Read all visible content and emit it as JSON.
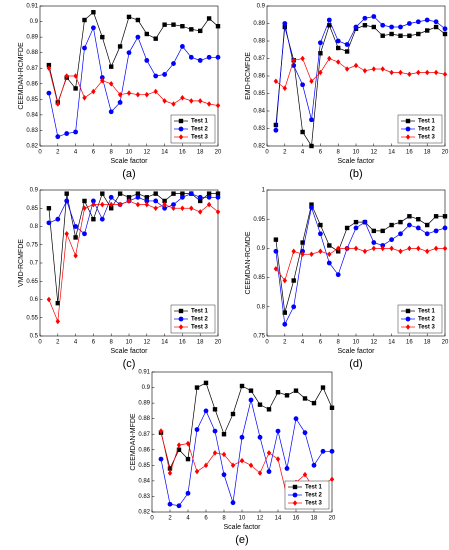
{
  "chart_data": [
    {
      "type": "line",
      "caption": "(a)",
      "xlabel": "Scale factor",
      "ylabel": "CEEMDAN-RCMFDE",
      "x": [
        1,
        2,
        3,
        4,
        5,
        6,
        7,
        8,
        9,
        10,
        11,
        12,
        13,
        14,
        15,
        16,
        17,
        18,
        19,
        20
      ],
      "xlim": [
        0,
        20
      ],
      "xticks": [
        0,
        2,
        4,
        6,
        8,
        10,
        12,
        14,
        16,
        18,
        20
      ],
      "ylim": [
        0.82,
        0.91
      ],
      "yticks": [
        0.82,
        0.83,
        0.84,
        0.85,
        0.86,
        0.87,
        0.88,
        0.89,
        0.9,
        0.91
      ],
      "legend": "lower right",
      "series": [
        {
          "name": "Test 1",
          "color": "#000000",
          "marker": "square",
          "values": [
            0.872,
            0.848,
            0.864,
            0.857,
            0.901,
            0.906,
            0.89,
            0.871,
            0.884,
            0.903,
            0.901,
            0.892,
            0.889,
            0.898,
            0.898,
            0.897,
            0.895,
            0.894,
            0.902,
            0.897
          ]
        },
        {
          "name": "Test 2",
          "color": "#0000ff",
          "marker": "circle",
          "values": [
            0.854,
            0.826,
            0.828,
            0.829,
            0.883,
            0.896,
            0.864,
            0.842,
            0.848,
            0.88,
            0.89,
            0.875,
            0.865,
            0.866,
            0.873,
            0.884,
            0.877,
            0.875,
            0.877,
            0.877
          ]
        },
        {
          "name": "Test 3",
          "color": "#ff0000",
          "marker": "diamond",
          "values": [
            0.87,
            0.847,
            0.865,
            0.865,
            0.851,
            0.855,
            0.862,
            0.86,
            0.853,
            0.854,
            0.853,
            0.853,
            0.855,
            0.849,
            0.847,
            0.851,
            0.849,
            0.849,
            0.847,
            0.846
          ]
        }
      ]
    },
    {
      "type": "line",
      "caption": "(b)",
      "xlabel": "Scale factor",
      "ylabel": "EMD-RCMFDE",
      "x": [
        1,
        2,
        3,
        4,
        5,
        6,
        7,
        8,
        9,
        10,
        11,
        12,
        13,
        14,
        15,
        16,
        17,
        18,
        19,
        20
      ],
      "xlim": [
        0,
        20
      ],
      "xticks": [
        0,
        2,
        4,
        6,
        8,
        10,
        12,
        14,
        16,
        18,
        20
      ],
      "ylim": [
        0.82,
        0.9
      ],
      "yticks": [
        0.82,
        0.83,
        0.84,
        0.85,
        0.86,
        0.87,
        0.88,
        0.89,
        0.9
      ],
      "legend": "lower right",
      "series": [
        {
          "name": "Test 1",
          "color": "#000000",
          "marker": "square",
          "values": [
            0.832,
            0.888,
            0.869,
            0.828,
            0.82,
            0.873,
            0.889,
            0.876,
            0.874,
            0.887,
            0.889,
            0.888,
            0.883,
            0.884,
            0.883,
            0.883,
            0.884,
            0.886,
            0.888,
            0.884
          ]
        },
        {
          "name": "Test 2",
          "color": "#0000ff",
          "marker": "circle",
          "values": [
            0.829,
            0.89,
            0.866,
            0.855,
            0.835,
            0.879,
            0.892,
            0.88,
            0.878,
            0.888,
            0.893,
            0.894,
            0.889,
            0.888,
            0.888,
            0.89,
            0.891,
            0.892,
            0.891,
            0.887
          ]
        },
        {
          "name": "Test 3",
          "color": "#ff0000",
          "marker": "diamond",
          "values": [
            0.857,
            0.853,
            0.869,
            0.87,
            0.857,
            0.862,
            0.87,
            0.868,
            0.864,
            0.866,
            0.863,
            0.864,
            0.864,
            0.862,
            0.862,
            0.861,
            0.862,
            0.862,
            0.862,
            0.861
          ]
        }
      ]
    },
    {
      "type": "line",
      "caption": "(c)",
      "xlabel": "Scale factor",
      "ylabel": "VMD-RCMFDE",
      "x": [
        1,
        2,
        3,
        4,
        5,
        6,
        7,
        8,
        9,
        10,
        11,
        12,
        13,
        14,
        15,
        16,
        17,
        18,
        19,
        20
      ],
      "xlim": [
        0,
        20
      ],
      "xticks": [
        0,
        2,
        4,
        6,
        8,
        10,
        12,
        14,
        16,
        18,
        20
      ],
      "ylim": [
        0.5,
        0.9
      ],
      "yticks": [
        0.5,
        0.55,
        0.6,
        0.65,
        0.7,
        0.75,
        0.8,
        0.85,
        0.9
      ],
      "legend": "lower right",
      "series": [
        {
          "name": "Test 1",
          "color": "#000000",
          "marker": "square",
          "values": [
            0.85,
            0.59,
            0.89,
            0.77,
            0.87,
            0.82,
            0.89,
            0.85,
            0.89,
            0.88,
            0.89,
            0.88,
            0.89,
            0.87,
            0.89,
            0.89,
            0.89,
            0.87,
            0.89,
            0.89
          ]
        },
        {
          "name": "Test 2",
          "color": "#0000ff",
          "marker": "circle",
          "values": [
            0.81,
            0.82,
            0.87,
            0.8,
            0.78,
            0.87,
            0.82,
            0.88,
            0.86,
            0.87,
            0.88,
            0.87,
            0.87,
            0.85,
            0.86,
            0.88,
            0.89,
            0.88,
            0.88,
            0.88
          ]
        },
        {
          "name": "Test 3",
          "color": "#ff0000",
          "marker": "diamond",
          "values": [
            0.6,
            0.54,
            0.78,
            0.72,
            0.85,
            0.86,
            0.86,
            0.86,
            0.86,
            0.87,
            0.86,
            0.86,
            0.85,
            0.86,
            0.85,
            0.85,
            0.85,
            0.84,
            0.86,
            0.84
          ]
        }
      ]
    },
    {
      "type": "line",
      "caption": "(d)",
      "xlabel": "Scale factor",
      "ylabel": "CEEMDAN-RCMDE",
      "x": [
        1,
        2,
        3,
        4,
        5,
        6,
        7,
        8,
        9,
        10,
        11,
        12,
        13,
        14,
        15,
        16,
        17,
        18,
        19,
        20
      ],
      "xlim": [
        0,
        20
      ],
      "xticks": [
        0,
        2,
        4,
        6,
        8,
        10,
        12,
        14,
        16,
        18,
        20
      ],
      "ylim": [
        0.75,
        1
      ],
      "yticks": [
        0.75,
        0.8,
        0.85,
        0.9,
        0.95,
        1
      ],
      "legend": "lower right",
      "series": [
        {
          "name": "Test 1",
          "color": "#000000",
          "marker": "square",
          "values": [
            0.915,
            0.79,
            0.845,
            0.91,
            0.975,
            0.94,
            0.905,
            0.895,
            0.935,
            0.945,
            0.945,
            0.93,
            0.93,
            0.94,
            0.945,
            0.955,
            0.95,
            0.94,
            0.955,
            0.955
          ]
        },
        {
          "name": "Test 2",
          "color": "#0000ff",
          "marker": "circle",
          "values": [
            0.895,
            0.77,
            0.8,
            0.895,
            0.97,
            0.925,
            0.875,
            0.855,
            0.9,
            0.935,
            0.945,
            0.91,
            0.905,
            0.915,
            0.925,
            0.94,
            0.935,
            0.925,
            0.93,
            0.935
          ]
        },
        {
          "name": "Test 3",
          "color": "#ff0000",
          "marker": "diamond",
          "values": [
            0.865,
            0.845,
            0.895,
            0.89,
            0.89,
            0.895,
            0.89,
            0.9,
            0.9,
            0.9,
            0.895,
            0.9,
            0.9,
            0.9,
            0.895,
            0.9,
            0.9,
            0.895,
            0.9,
            0.9
          ]
        }
      ]
    },
    {
      "type": "line",
      "caption": "(e)",
      "xlabel": "Scale factor",
      "ylabel": "CEEMDAN-MFDE",
      "x": [
        1,
        2,
        3,
        4,
        5,
        6,
        7,
        8,
        9,
        10,
        11,
        12,
        13,
        14,
        15,
        16,
        17,
        18,
        19,
        20
      ],
      "xlim": [
        0,
        20
      ],
      "xticks": [
        0,
        2,
        4,
        6,
        8,
        10,
        12,
        14,
        16,
        18,
        20
      ],
      "ylim": [
        0.82,
        0.91
      ],
      "yticks": [
        0.82,
        0.83,
        0.84,
        0.85,
        0.86,
        0.87,
        0.88,
        0.89,
        0.9,
        0.91
      ],
      "legend": "lower right",
      "series": [
        {
          "name": "Test 1",
          "color": "#000000",
          "marker": "square",
          "values": [
            0.871,
            0.848,
            0.86,
            0.854,
            0.9,
            0.903,
            0.886,
            0.87,
            0.883,
            0.901,
            0.898,
            0.889,
            0.886,
            0.897,
            0.895,
            0.898,
            0.893,
            0.89,
            0.9,
            0.887
          ]
        },
        {
          "name": "Test 2",
          "color": "#0000ff",
          "marker": "circle",
          "values": [
            0.854,
            0.825,
            0.824,
            0.832,
            0.873,
            0.885,
            0.872,
            0.844,
            0.826,
            0.868,
            0.892,
            0.868,
            0.846,
            0.872,
            0.848,
            0.88,
            0.871,
            0.85,
            0.859,
            0.859
          ]
        },
        {
          "name": "Test 3",
          "color": "#ff0000",
          "marker": "diamond",
          "values": [
            0.872,
            0.845,
            0.863,
            0.864,
            0.846,
            0.85,
            0.858,
            0.857,
            0.85,
            0.853,
            0.85,
            0.845,
            0.858,
            0.854,
            0.83,
            0.839,
            0.844,
            0.835,
            0.838,
            0.841
          ]
        }
      ]
    }
  ]
}
